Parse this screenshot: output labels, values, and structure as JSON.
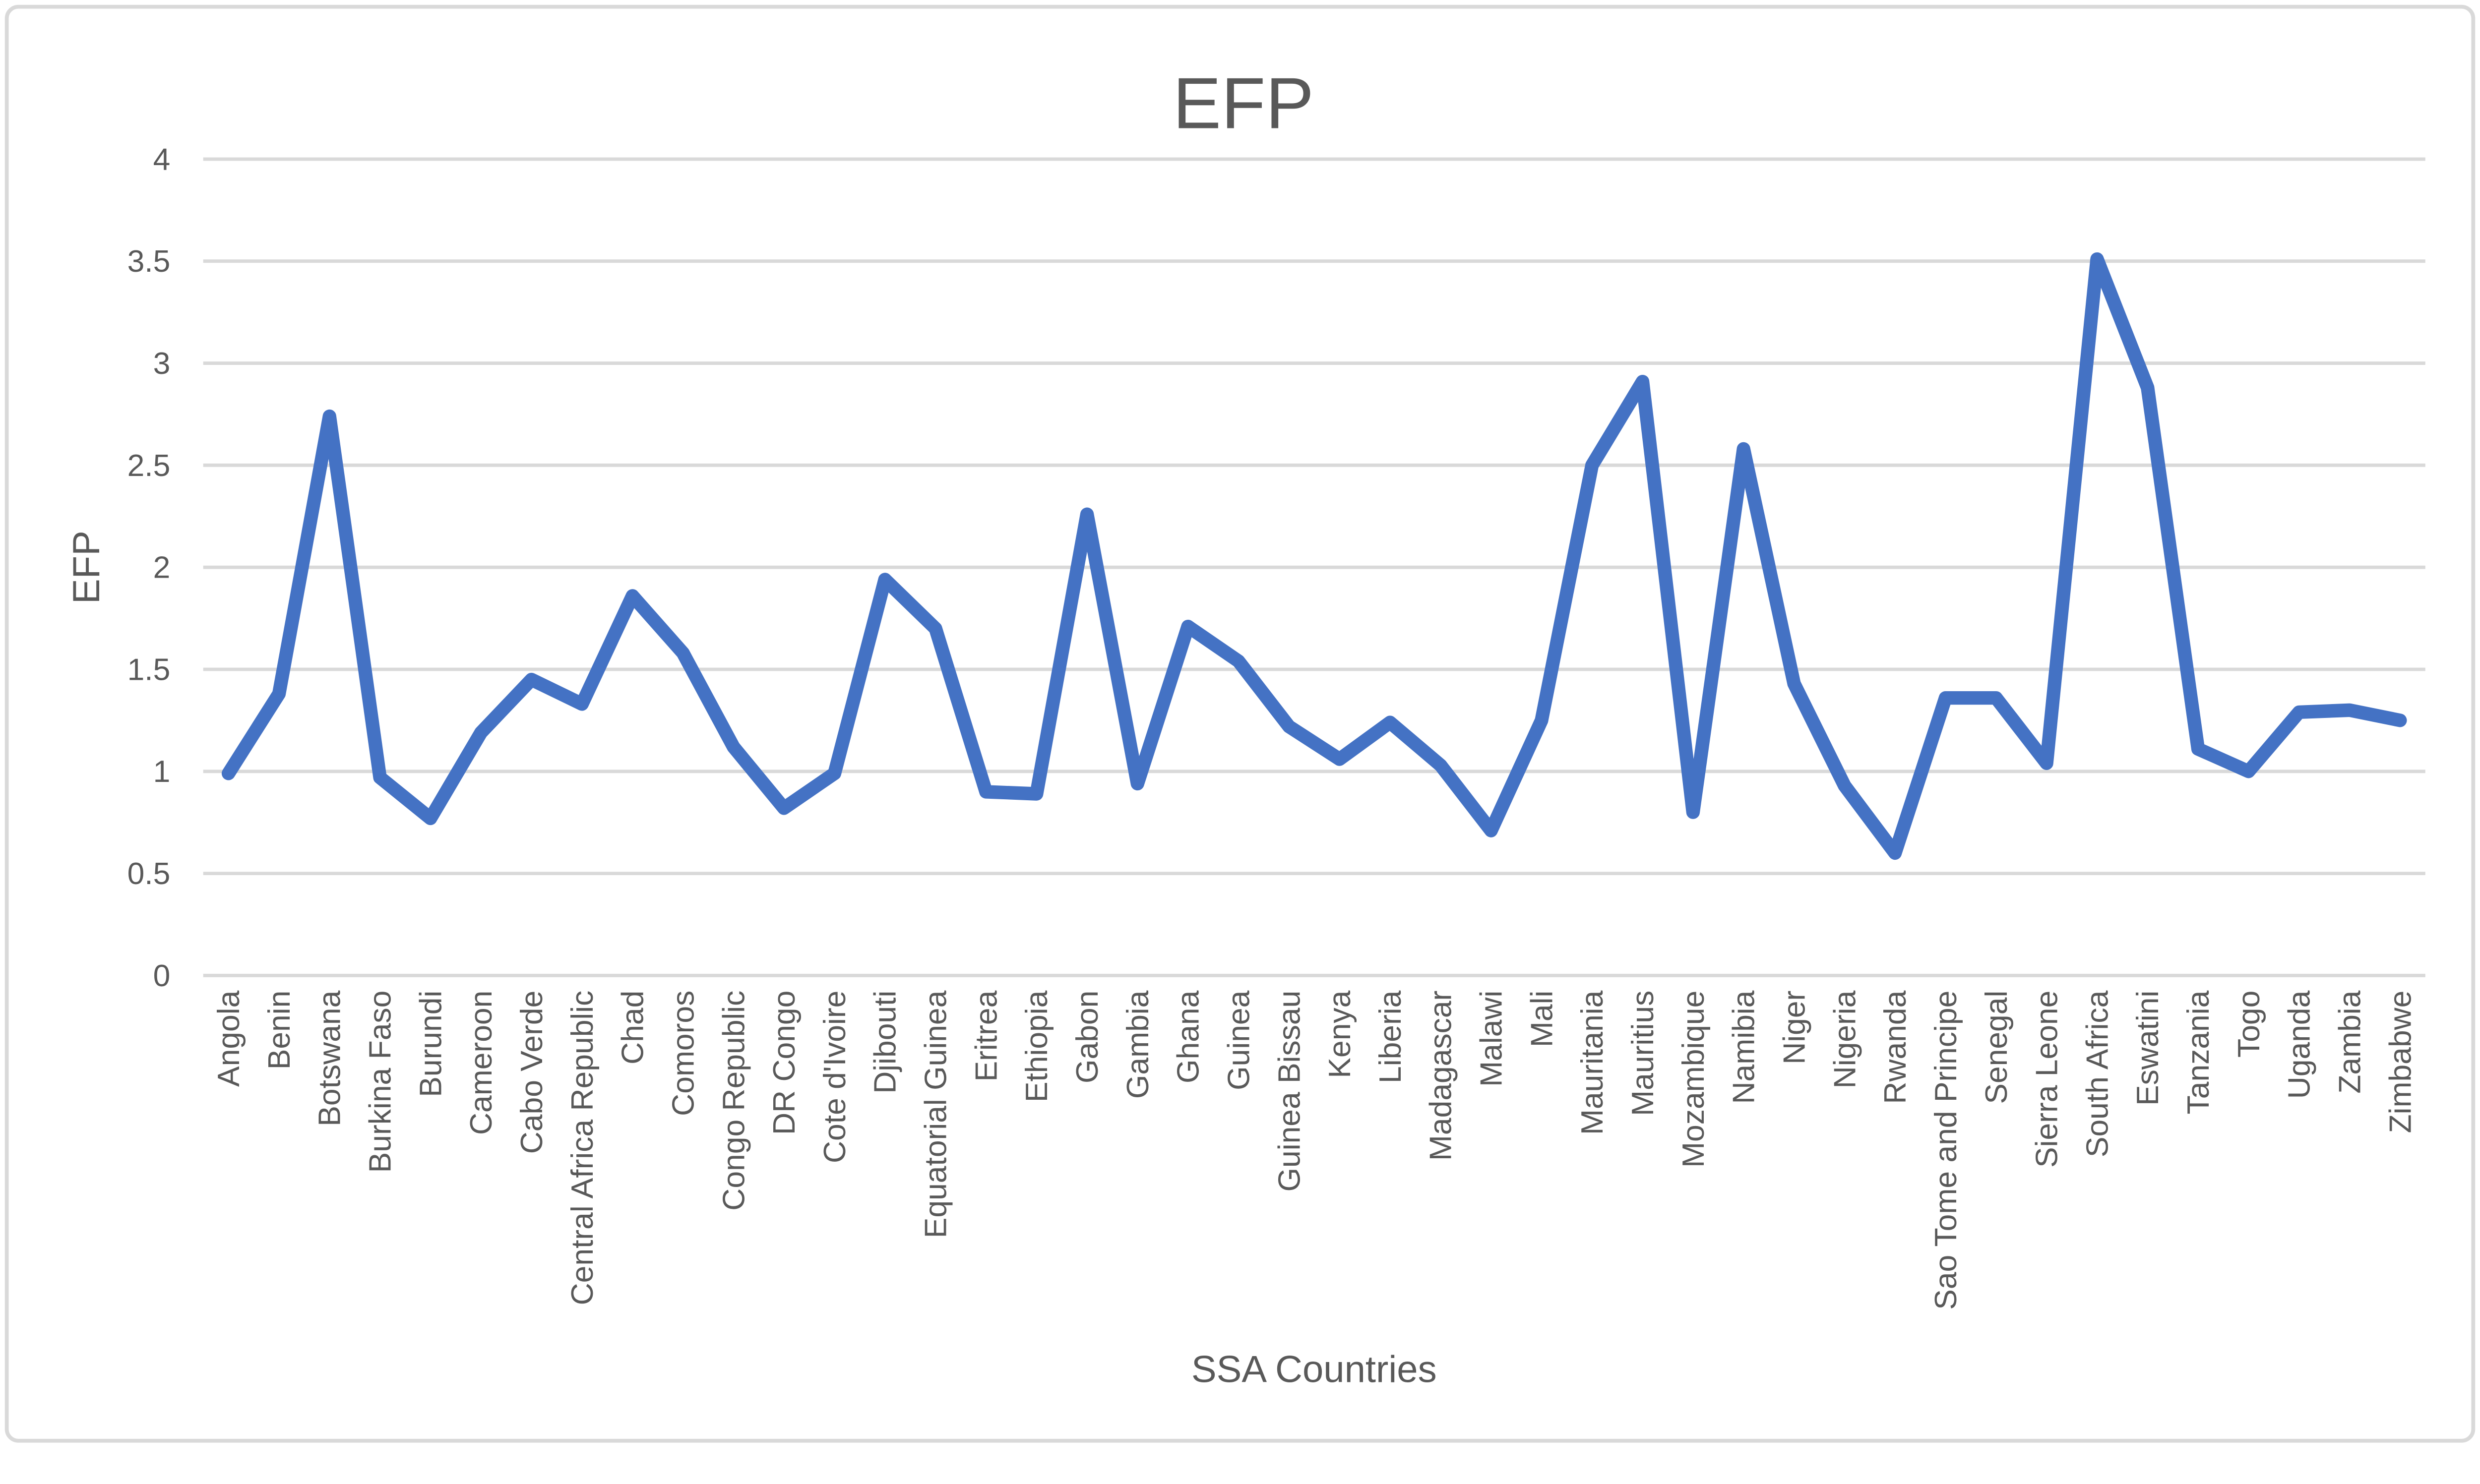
{
  "title": "EFP",
  "axes": {
    "y_title": "EFP",
    "x_title": "SSA Countries",
    "y_ticks": [
      "0",
      "0.5",
      "1",
      "1.5",
      "2",
      "2.5",
      "3",
      "3.5",
      "4"
    ]
  },
  "colors": {
    "line": "#4472C4",
    "gridline": "#D9D9D9",
    "border": "#D9D9D9",
    "text": "#595959",
    "background": "#FFFFFF"
  },
  "chart_data": {
    "type": "line",
    "title": "EFP",
    "xlabel": "SSA Countries",
    "ylabel": "EFP",
    "ylim": [
      0,
      4
    ],
    "ytick_step": 0.5,
    "grid": true,
    "legend": false,
    "categories": [
      "Angola",
      "Benin",
      "Botswana",
      "Burkina Faso",
      "Burundi",
      "Cameroon",
      "Cabo Verde",
      "Central Africa Republic",
      "Chad",
      "Comoros",
      "Congo Republic",
      "DR Congo",
      "Cote d'Ivoire",
      "Djibouti",
      "Equatorial Guinea",
      "Eritrea",
      "Ethiopia",
      "Gabon",
      "Gambia",
      "Ghana",
      "Guinea",
      "Guinea Bissau",
      "Kenya",
      "Liberia",
      "Madagascar",
      "Malawi",
      "Mali",
      "Mauritania",
      "Mauritius",
      "Mozambique",
      "Namibia",
      "Niger",
      "Nigeria",
      "Rwanda",
      "Sao Tome and Principe",
      "Senegal",
      "Sierra Leone",
      "South Africa",
      "Eswatini",
      "Tanzania",
      "Togo",
      "Uganda",
      "Zambia",
      "Zimbabwe"
    ],
    "series": [
      {
        "name": "EFP",
        "values": [
          0.99,
          1.38,
          2.74,
          0.97,
          0.77,
          1.19,
          1.45,
          1.33,
          1.86,
          1.58,
          1.12,
          0.82,
          0.99,
          1.94,
          1.7,
          0.9,
          0.89,
          2.26,
          0.94,
          1.71,
          1.54,
          1.22,
          1.06,
          1.24,
          1.03,
          0.71,
          1.25,
          2.5,
          2.91,
          0.8,
          2.58,
          1.43,
          0.93,
          0.6,
          1.36,
          1.36,
          1.04,
          3.51,
          2.88,
          1.11,
          1.0,
          1.29,
          1.3,
          1.25
        ]
      }
    ]
  }
}
